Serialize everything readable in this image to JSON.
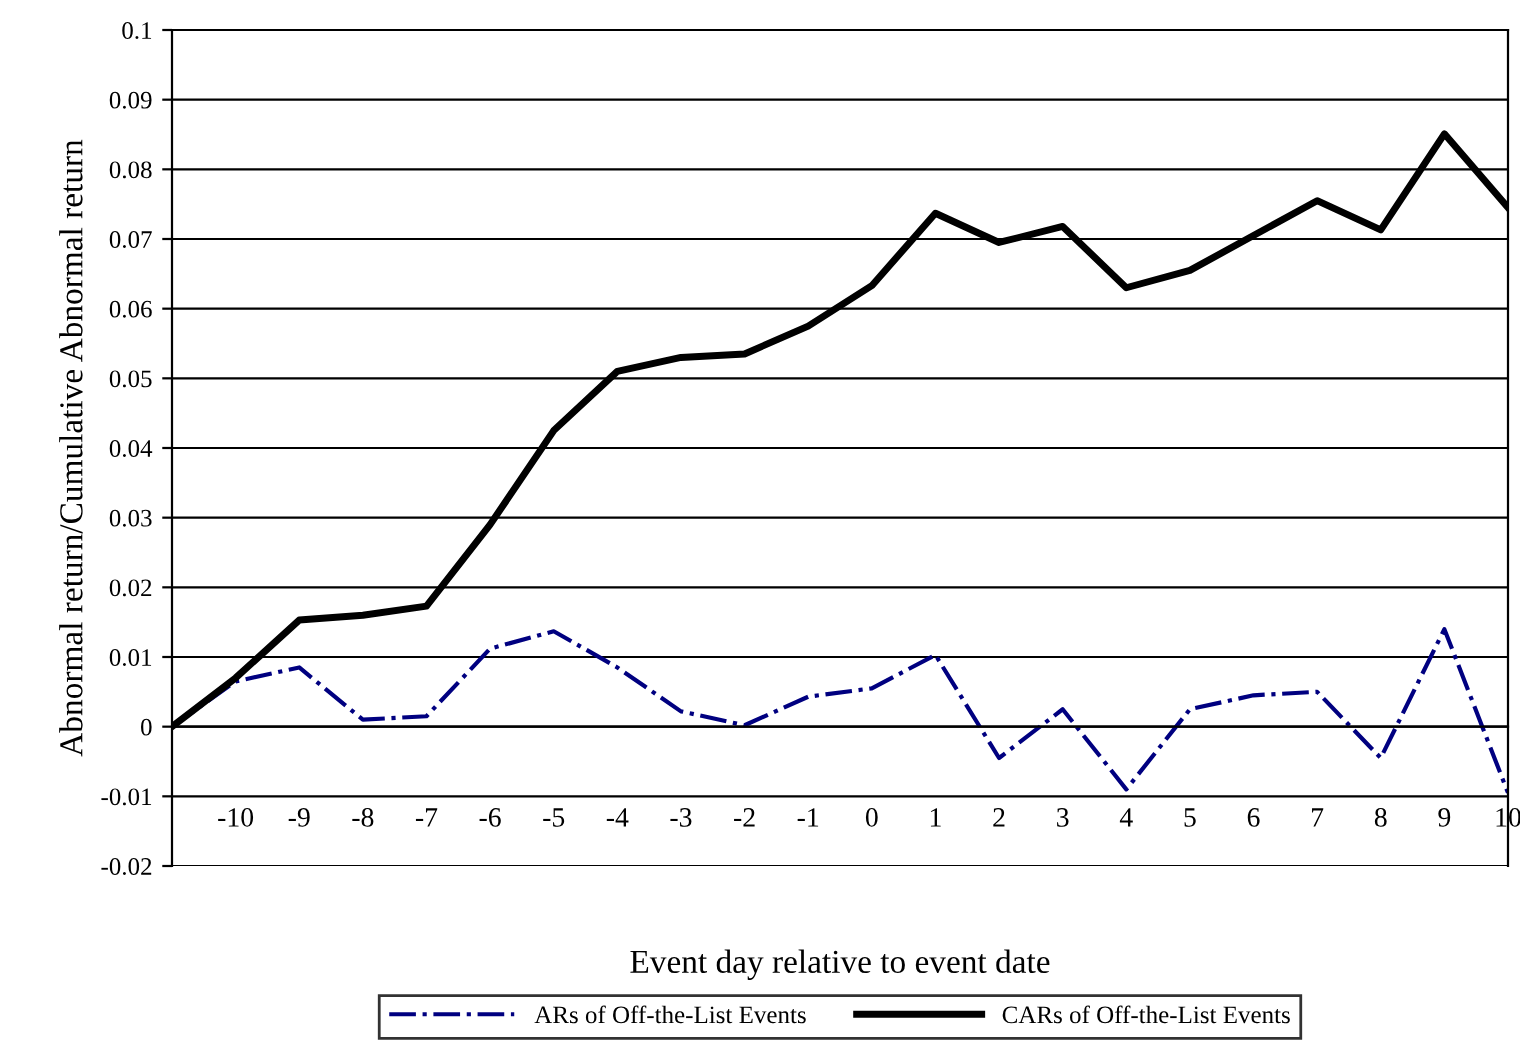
{
  "chart_data": {
    "type": "line",
    "xlabel": "Event day relative to event date",
    "ylabel": "Abnormal return/Cumulative Abnormal return",
    "categories": [
      null,
      "-10",
      "-9",
      "-8",
      "-7",
      "-6",
      "-5",
      "-4",
      "-3",
      "-2",
      "-1",
      "0",
      "1",
      "2",
      "3",
      "4",
      "5",
      "6",
      "7",
      "8",
      "9",
      "10"
    ],
    "series": [
      {
        "name": "ARs of Off-the-List Events",
        "color": "#000080",
        "line_style": "dashdot",
        "values": [
          0,
          0.0065,
          0.0085,
          0.001,
          0.0015,
          0.0112,
          0.0137,
          0.0085,
          0.0022,
          0.0002,
          0.0043,
          0.0055,
          0.0103,
          -0.0045,
          0.0025,
          -0.009,
          0.0025,
          0.0045,
          0.005,
          -0.0045,
          0.014,
          -0.0095
        ]
      },
      {
        "name": "CARs of Off-the-List Events",
        "color": "#000000",
        "line_style": "solid",
        "values": [
          0,
          0.007,
          0.0153,
          0.016,
          0.0173,
          0.029,
          0.0425,
          0.051,
          0.053,
          0.0535,
          0.0575,
          0.0633,
          0.0737,
          0.0695,
          0.0718,
          0.063,
          0.0655,
          0.0705,
          0.0755,
          0.0713,
          0.0851,
          0.0745
        ]
      }
    ],
    "ylim": [
      -0.02,
      0.1
    ],
    "yticks": [
      -0.02,
      -0.01,
      0,
      0.01,
      0.02,
      0.03,
      0.04,
      0.05,
      0.06,
      0.07,
      0.08,
      0.09,
      0.1
    ],
    "grid": "y",
    "legend": "bottom",
    "marker": "none"
  }
}
